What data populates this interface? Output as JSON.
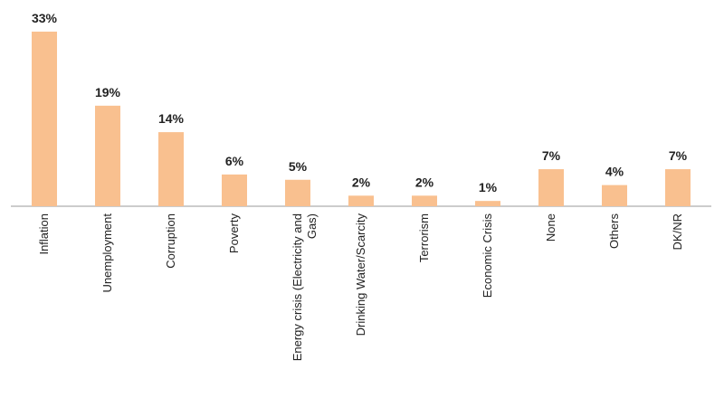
{
  "chart_data": {
    "type": "bar",
    "categories": [
      "Inflation",
      "Unemployment",
      "Corruption",
      "Poverty",
      "Energy crisis (Electricity and Gas)",
      "Drinking Water/Scarcity",
      "Terrorism",
      "Economic Crisis",
      "None",
      "Others",
      "DK/NR"
    ],
    "values": [
      33,
      19,
      14,
      6,
      5,
      2,
      2,
      1,
      7,
      4,
      7
    ],
    "value_labels": [
      "33%",
      "19%",
      "14%",
      "6%",
      "5%",
      "2%",
      "2%",
      "1%",
      "7%",
      "4%",
      "7%"
    ],
    "color": "#f9c08f"
  }
}
